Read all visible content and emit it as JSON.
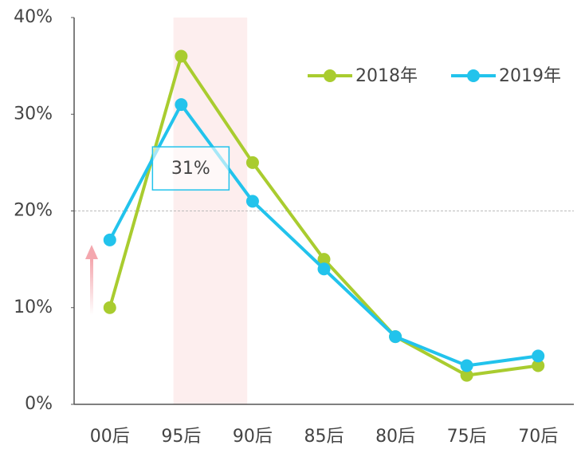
{
  "chart_data": {
    "type": "line",
    "categories": [
      "00后",
      "95后",
      "90后",
      "85后",
      "80后",
      "75后",
      "70后"
    ],
    "series": [
      {
        "name": "2018年",
        "color": "#a9cc2f",
        "values": [
          10,
          36,
          25,
          15,
          7,
          3,
          4
        ]
      },
      {
        "name": "2019年",
        "color": "#22c3ec",
        "values": [
          17,
          31,
          21,
          14,
          7,
          4,
          5
        ],
        "value_labels": [
          null,
          "31%",
          null,
          null,
          null,
          null,
          null
        ]
      }
    ],
    "ylim": [
      0,
      40
    ],
    "yticks": [
      {
        "value": 0,
        "label": "0%"
      },
      {
        "value": 10,
        "label": "10%"
      },
      {
        "value": 20,
        "label": "20%"
      },
      {
        "value": 30,
        "label": "30%"
      },
      {
        "value": 40,
        "label": "40%"
      }
    ],
    "reference_line": 20,
    "highlight": "95后",
    "legend": "top-right"
  }
}
